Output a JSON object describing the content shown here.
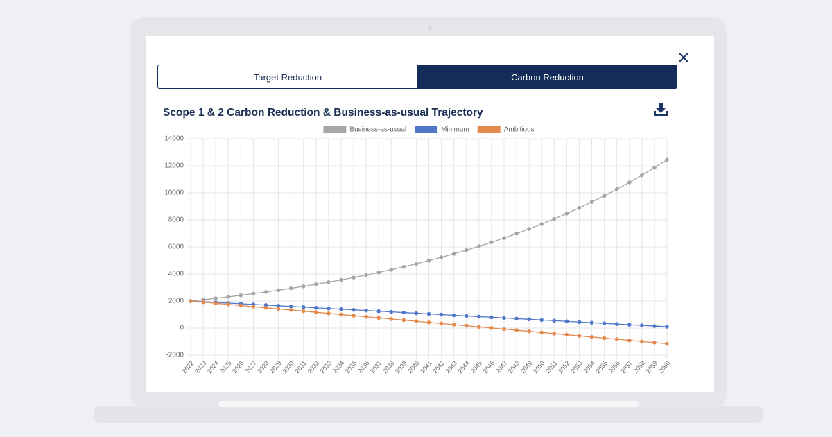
{
  "tabs": [
    {
      "label": "Target Reduction"
    },
    {
      "label": "Carbon Reduction"
    }
  ],
  "active_tab": 1,
  "chart_data": {
    "type": "line",
    "title": "Scope 1 & 2 Carbon Reduction & Business-as-usual Trajectory",
    "categories": [
      "2022",
      "2023",
      "2024",
      "2025",
      "2026",
      "2027",
      "2028",
      "2029",
      "2030",
      "2031",
      "2032",
      "2033",
      "2034",
      "2035",
      "2036",
      "2037",
      "2038",
      "2039",
      "2040",
      "2041",
      "2042",
      "2043",
      "2044",
      "2045",
      "2046",
      "2047",
      "2048",
      "2049",
      "2050",
      "2051",
      "2052",
      "2053",
      "2054",
      "2055",
      "2056",
      "2057",
      "2058",
      "2059",
      "2060"
    ],
    "series": [
      {
        "name": "Business-as-usual",
        "color": "#a6a6a6",
        "values": [
          2000,
          2099,
          2202,
          2310,
          2424,
          2544,
          2669,
          2801,
          2939,
          3084,
          3236,
          3395,
          3562,
          3738,
          3922,
          4115,
          4318,
          4531,
          4754,
          4989,
          5234,
          5492,
          5763,
          6047,
          6345,
          6658,
          6986,
          7330,
          7692,
          8071,
          8469,
          8886,
          9324,
          9783,
          10266,
          10772,
          11303,
          11860,
          12445
        ]
      },
      {
        "name": "Minimum",
        "color": "#5077c9",
        "values": [
          2000,
          1950,
          1900,
          1850,
          1800,
          1750,
          1700,
          1650,
          1600,
          1550,
          1500,
          1450,
          1400,
          1350,
          1300,
          1250,
          1200,
          1150,
          1100,
          1050,
          1000,
          950,
          900,
          850,
          800,
          750,
          700,
          650,
          600,
          550,
          500,
          450,
          400,
          350,
          300,
          250,
          200,
          150,
          100
        ]
      },
      {
        "name": "Ambitious",
        "color": "#e38a4f",
        "values": [
          2000,
          1917,
          1834,
          1751,
          1668,
          1585,
          1502,
          1419,
          1336,
          1253,
          1170,
          1087,
          1004,
          921,
          838,
          755,
          672,
          589,
          506,
          423,
          340,
          257,
          174,
          91,
          8,
          -75,
          -158,
          -241,
          -324,
          -407,
          -490,
          -573,
          -656,
          -739,
          -822,
          -905,
          -988,
          -1071,
          -1154
        ]
      }
    ],
    "ylim": [
      -2000,
      14000
    ],
    "yticks": [
      -2000,
      0,
      2000,
      4000,
      6000,
      8000,
      10000,
      12000,
      14000
    ],
    "grid": true,
    "legend": "top"
  }
}
